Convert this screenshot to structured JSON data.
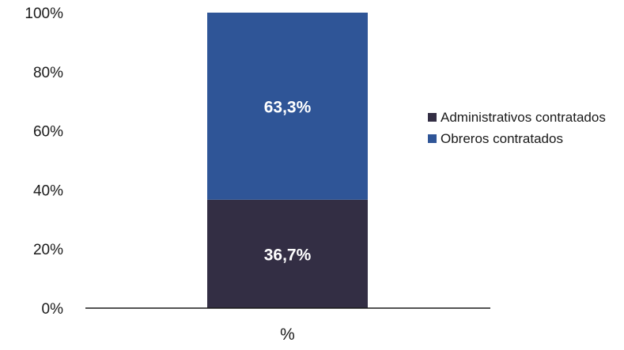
{
  "chart_data": {
    "type": "bar",
    "stacked": true,
    "categories": [
      "%"
    ],
    "series": [
      {
        "name": "Administrativos contratados",
        "values": [
          36.7
        ],
        "label": "36,7%",
        "color": "#332e44"
      },
      {
        "name": "Obreros contratados",
        "values": [
          63.3
        ],
        "label": "63,3%",
        "color": "#2f5597"
      }
    ],
    "yticks": [
      "0%",
      "20%",
      "40%",
      "60%",
      "80%",
      "100%"
    ],
    "ylim": [
      0,
      100
    ],
    "legend_position": "right",
    "grid": false
  }
}
